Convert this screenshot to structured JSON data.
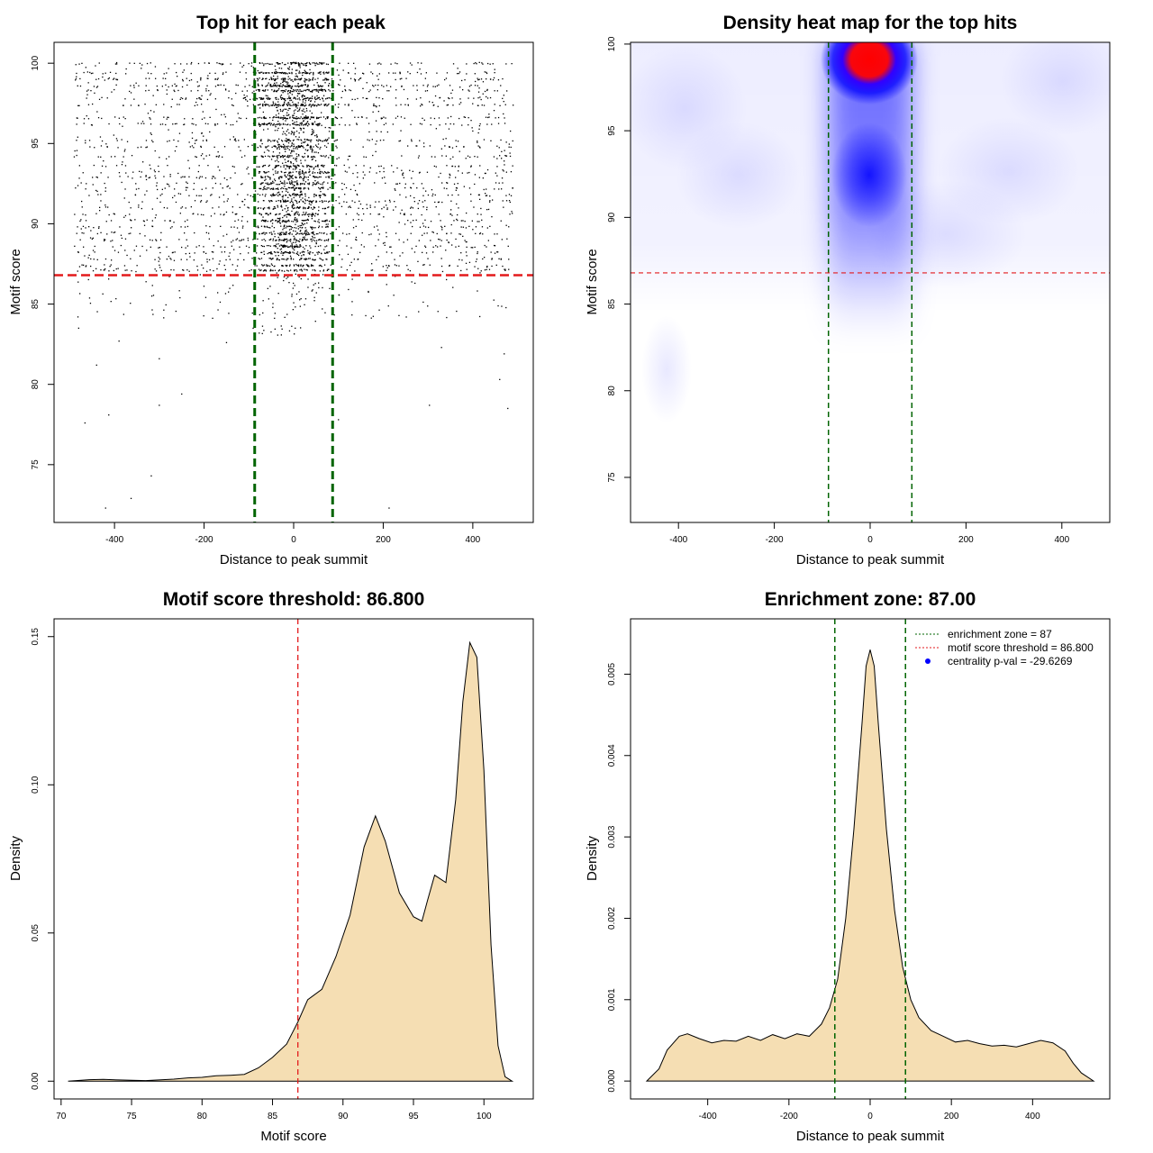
{
  "chart_data": [
    {
      "type": "scatter",
      "title": "Top hit for each peak",
      "xlabel": "Distance to peak summit",
      "ylabel": "Motif score",
      "xlim": [
        -535,
        535
      ],
      "ylim": [
        71.4,
        101.3
      ],
      "xticks": [
        -400,
        -200,
        0,
        200,
        400
      ],
      "yticks": [
        75,
        80,
        85,
        90,
        95,
        100
      ],
      "enrichment_zone": [
        -87,
        87
      ],
      "threshold": 86.8,
      "point_color": "#000000",
      "zone_color": "#006400",
      "threshold_color": "#e31a1c",
      "sample_points": [
        {
          "x": -420,
          "y": 72.3
        },
        {
          "x": -363,
          "y": 72.9
        },
        {
          "x": -318,
          "y": 74.3
        },
        {
          "x": 213,
          "y": 72.3
        },
        {
          "x": -466,
          "y": 77.6
        },
        {
          "x": -413,
          "y": 78.1
        },
        {
          "x": -300,
          "y": 78.7
        },
        {
          "x": -250,
          "y": 79.4
        },
        {
          "x": 100,
          "y": 77.8
        },
        {
          "x": 303,
          "y": 78.7
        },
        {
          "x": 478,
          "y": 78.5
        },
        {
          "x": -480,
          "y": 83.5
        },
        {
          "x": -440,
          "y": 81.2
        },
        {
          "x": -390,
          "y": 82.7
        },
        {
          "x": -300,
          "y": 81.6
        },
        {
          "x": -150,
          "y": 82.6
        },
        {
          "x": 330,
          "y": 82.3
        },
        {
          "x": 470,
          "y": 81.9
        },
        {
          "x": 460,
          "y": 80.3
        }
      ]
    },
    {
      "type": "heatmap",
      "title": "Density heat map for the top hits",
      "xlabel": "Distance to peak summit",
      "ylabel": "Motif score",
      "xlim": [
        -500,
        500
      ],
      "ylim": [
        72.4,
        100.1
      ],
      "xticks": [
        -400,
        -200,
        0,
        200,
        400
      ],
      "yticks": [
        75,
        80,
        85,
        90,
        95,
        100
      ],
      "enrichment_zone": [
        -87,
        87
      ],
      "threshold": 86.8,
      "hotspots": [
        {
          "x": 0,
          "y": 99.2,
          "intensity": "max"
        },
        {
          "x": 0,
          "y": 92.3,
          "intensity": "high"
        }
      ],
      "low_color": "#ffffff",
      "mid_color": "#0000ff",
      "high_color": "#ff0000"
    },
    {
      "type": "area",
      "title": "Motif score threshold: 86.800",
      "xlabel": "Motif score",
      "ylabel": "Density",
      "xlim": [
        69.5,
        103.5
      ],
      "ylim": [
        -0.006,
        0.156
      ],
      "xticks": [
        70,
        75,
        80,
        85,
        90,
        95,
        100
      ],
      "yticks": [
        0.0,
        0.05,
        0.1,
        0.15
      ],
      "ytick_labels": [
        "0.00",
        "0.05",
        "0.10",
        "0.15"
      ],
      "threshold": 86.8,
      "fill_color": "#f5deb3",
      "x": [
        70.5,
        72,
        73,
        75,
        76,
        78,
        79,
        80,
        81,
        82,
        83,
        84,
        85,
        86,
        86.8,
        87.5,
        88.5,
        89.5,
        90.5,
        91.5,
        92.3,
        93,
        94,
        95,
        95.6,
        96,
        96.5,
        97.3,
        98,
        98.5,
        99,
        99.5,
        100,
        100.5,
        101,
        101.5,
        102
      ],
      "y": [
        0.0,
        0.0005,
        0.0006,
        0.0003,
        0.0002,
        0.0007,
        0.0011,
        0.0013,
        0.0018,
        0.002,
        0.0023,
        0.0045,
        0.008,
        0.0125,
        0.02,
        0.0275,
        0.031,
        0.042,
        0.056,
        0.079,
        0.0895,
        0.081,
        0.0635,
        0.0555,
        0.054,
        0.061,
        0.0695,
        0.067,
        0.095,
        0.128,
        0.148,
        0.143,
        0.105,
        0.046,
        0.012,
        0.0015,
        0.0
      ]
    },
    {
      "type": "area",
      "title": "Enrichment zone: 87.00",
      "xlabel": "Distance to peak summit",
      "ylabel": "Density",
      "xlim": [
        -590,
        590
      ],
      "ylim": [
        -0.00022,
        0.00568
      ],
      "xticks": [
        -400,
        -200,
        0,
        200,
        400
      ],
      "yticks": [
        0.0,
        0.001,
        0.002,
        0.003,
        0.004,
        0.005
      ],
      "ytick_labels": [
        "0.000",
        "0.001",
        "0.002",
        "0.003",
        "0.004",
        "0.005"
      ],
      "enrichment_zone": [
        -87,
        87
      ],
      "fill_color": "#f5deb3",
      "zone_color": "#006400",
      "x": [
        -550,
        -520,
        -500,
        -470,
        -450,
        -420,
        -390,
        -360,
        -330,
        -300,
        -270,
        -240,
        -210,
        -180,
        -150,
        -120,
        -100,
        -80,
        -60,
        -40,
        -20,
        -10,
        0,
        10,
        20,
        40,
        60,
        80,
        100,
        120,
        150,
        180,
        210,
        240,
        270,
        300,
        330,
        360,
        390,
        420,
        450,
        480,
        500,
        520,
        550
      ],
      "y": [
        0.0,
        0.00015,
        0.00038,
        0.00055,
        0.00058,
        0.00052,
        0.00047,
        0.0005,
        0.00049,
        0.00055,
        0.0005,
        0.00057,
        0.00052,
        0.00058,
        0.00055,
        0.0007,
        0.0009,
        0.00125,
        0.002,
        0.0031,
        0.0044,
        0.0051,
        0.0053,
        0.0051,
        0.0044,
        0.0031,
        0.0021,
        0.0014,
        0.001,
        0.00078,
        0.00062,
        0.00055,
        0.00048,
        0.0005,
        0.00046,
        0.00043,
        0.00044,
        0.00042,
        0.00046,
        0.0005,
        0.00047,
        0.00037,
        0.00022,
        0.0001,
        0.0
      ],
      "legend": [
        {
          "label": "enrichment zone = 87",
          "color": "#006400",
          "style": "dotted-line"
        },
        {
          "label": "motif score threshold = 86.800",
          "color": "#e31a1c",
          "style": "dotted-line"
        },
        {
          "label": "centrality p-val = -29.6269",
          "color": "#0000ff",
          "style": "point"
        }
      ],
      "legend_position": "top-right"
    }
  ]
}
